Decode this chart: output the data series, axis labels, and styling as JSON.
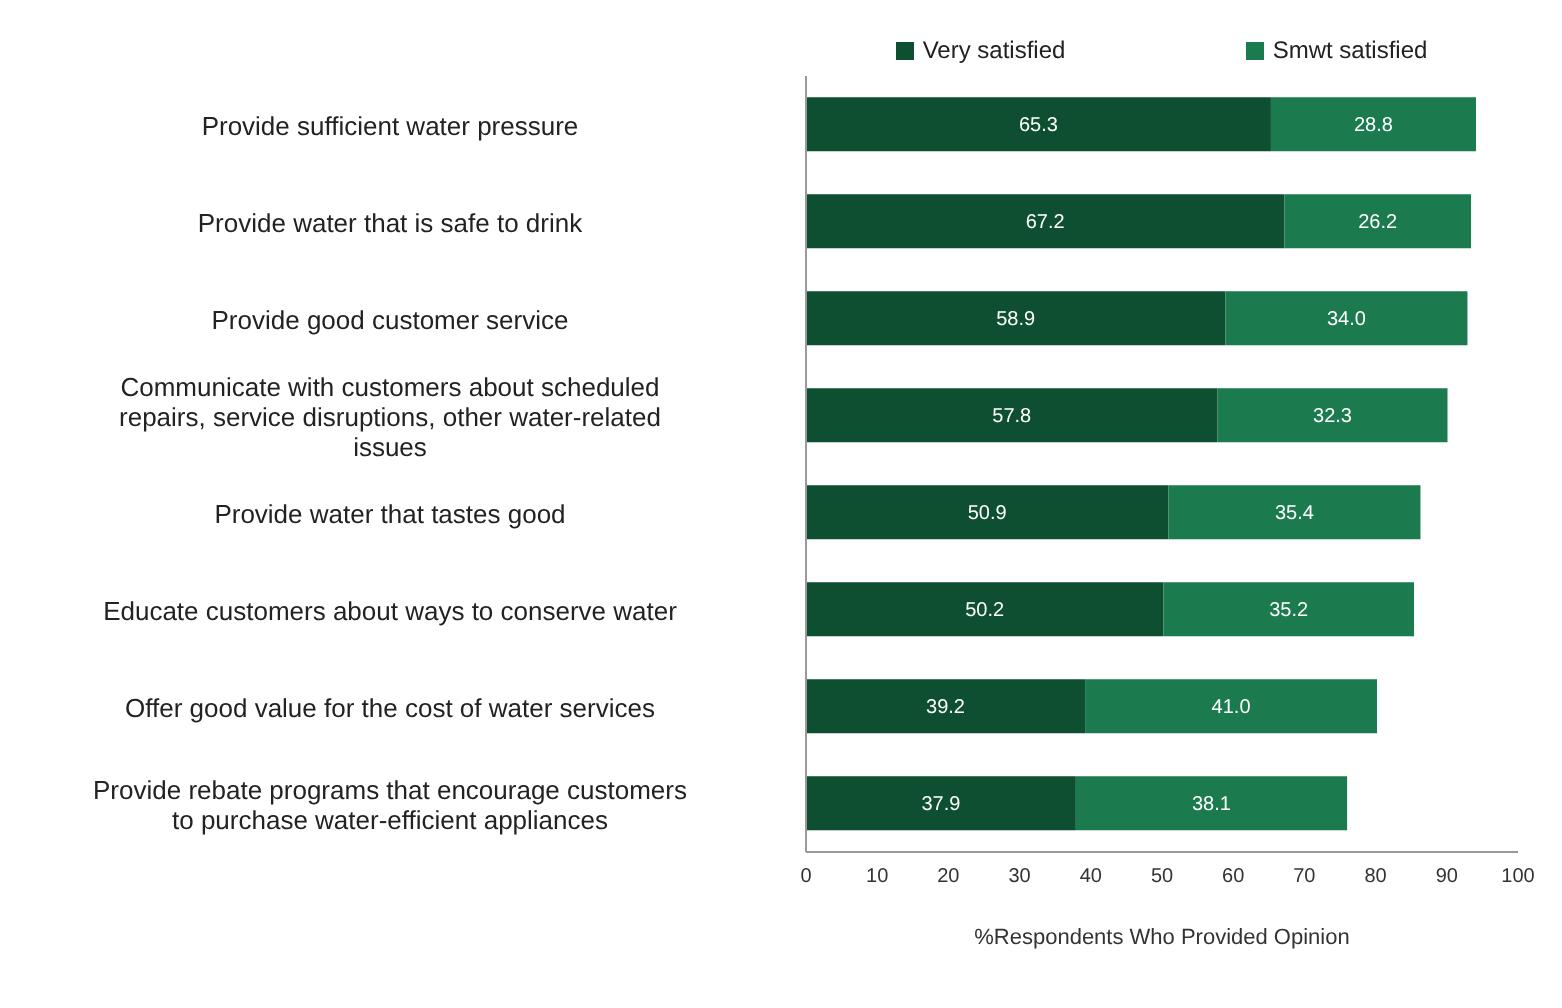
{
  "chart_data": {
    "type": "bar",
    "orientation": "horizontal",
    "stacked": true,
    "legend": "top",
    "grid": false,
    "xlabel": "%Respondents Who Provided Opinion",
    "categories": [
      "Provide sufficient water pressure",
      "Provide water that is safe to drink",
      "Provide good customer service",
      "Communicate with customers about scheduled repairs, service disruptions, other water-related issues",
      "Provide water that tastes good",
      "Educate customers about ways to conserve water",
      "Offer good value for the cost of water services",
      "Provide rebate programs that encourage customers to purchase water-efficient appliances"
    ],
    "series": [
      {
        "name": "Very satisfied",
        "color": "#0d4f30",
        "values": [
          65.3,
          67.2,
          58.9,
          57.8,
          50.9,
          50.2,
          39.2,
          37.9
        ],
        "value_labels": [
          "65.3",
          "67.2",
          "58.9",
          "57.8",
          "50.9",
          "50.2",
          "39.2",
          "37.9"
        ]
      },
      {
        "name": "Smwt satisfied",
        "color": "#1b7a4e",
        "values": [
          28.8,
          26.2,
          34.0,
          32.3,
          35.4,
          35.2,
          41.0,
          38.1
        ],
        "value_labels": [
          "28.8",
          "26.2",
          "34.0",
          "32.3",
          "35.4",
          "35.2",
          "41.0",
          "38.1"
        ]
      }
    ],
    "xlim": [
      0,
      100
    ],
    "xticks": [
      0,
      10,
      20,
      30,
      40,
      50,
      60,
      70,
      80,
      90,
      100
    ]
  }
}
